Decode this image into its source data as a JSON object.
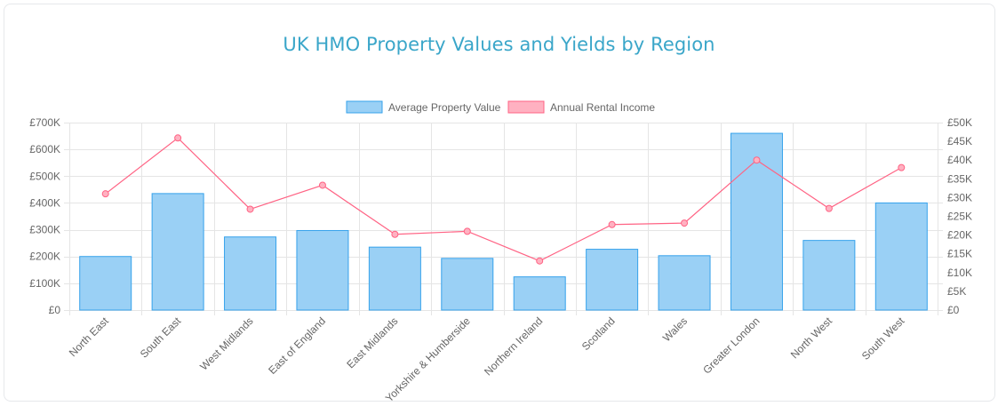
{
  "chart_data": {
    "type": "bar",
    "title": "UK HMO Property Values and Yields by Region",
    "categories": [
      "North East",
      "South East",
      "West Midlands",
      "East of England",
      "East Midlands",
      "Yorkshire & Humberside",
      "Northern Ireland",
      "Scotland",
      "Wales",
      "Greater London",
      "North West",
      "South West"
    ],
    "series": [
      {
        "name": "Average Property Value",
        "type": "bar",
        "axis": "left",
        "color": "#9ad0f5",
        "border_color": "#36a2eb",
        "values": [
          200000,
          435000,
          273000,
          297000,
          235000,
          193000,
          124000,
          227000,
          203000,
          660000,
          260000,
          400000
        ]
      },
      {
        "name": "Annual Rental Income",
        "type": "line",
        "axis": "right",
        "color": "#ff6384",
        "fill_color": "#ffb1c1",
        "values": [
          31000,
          45900,
          26900,
          33300,
          20200,
          21000,
          13100,
          22800,
          23200,
          40000,
          27100,
          38000
        ]
      }
    ],
    "y_left": {
      "ylim": [
        0,
        700000
      ],
      "ticks": [
        0,
        100000,
        200000,
        300000,
        400000,
        500000,
        600000,
        700000
      ],
      "tick_labels": [
        "£0",
        "£100K",
        "£200K",
        "£300K",
        "£400K",
        "£500K",
        "£600K",
        "£700K"
      ]
    },
    "y_right": {
      "ylim": [
        0,
        50000
      ],
      "ticks": [
        0,
        5000,
        10000,
        15000,
        20000,
        25000,
        30000,
        35000,
        40000,
        45000,
        50000
      ],
      "tick_labels": [
        "£0",
        "£5K",
        "£10K",
        "£15K",
        "£20K",
        "£25K",
        "£30K",
        "£35K",
        "£40K",
        "£45K",
        "£50K"
      ]
    },
    "legend_position": "top",
    "grid": true
  }
}
